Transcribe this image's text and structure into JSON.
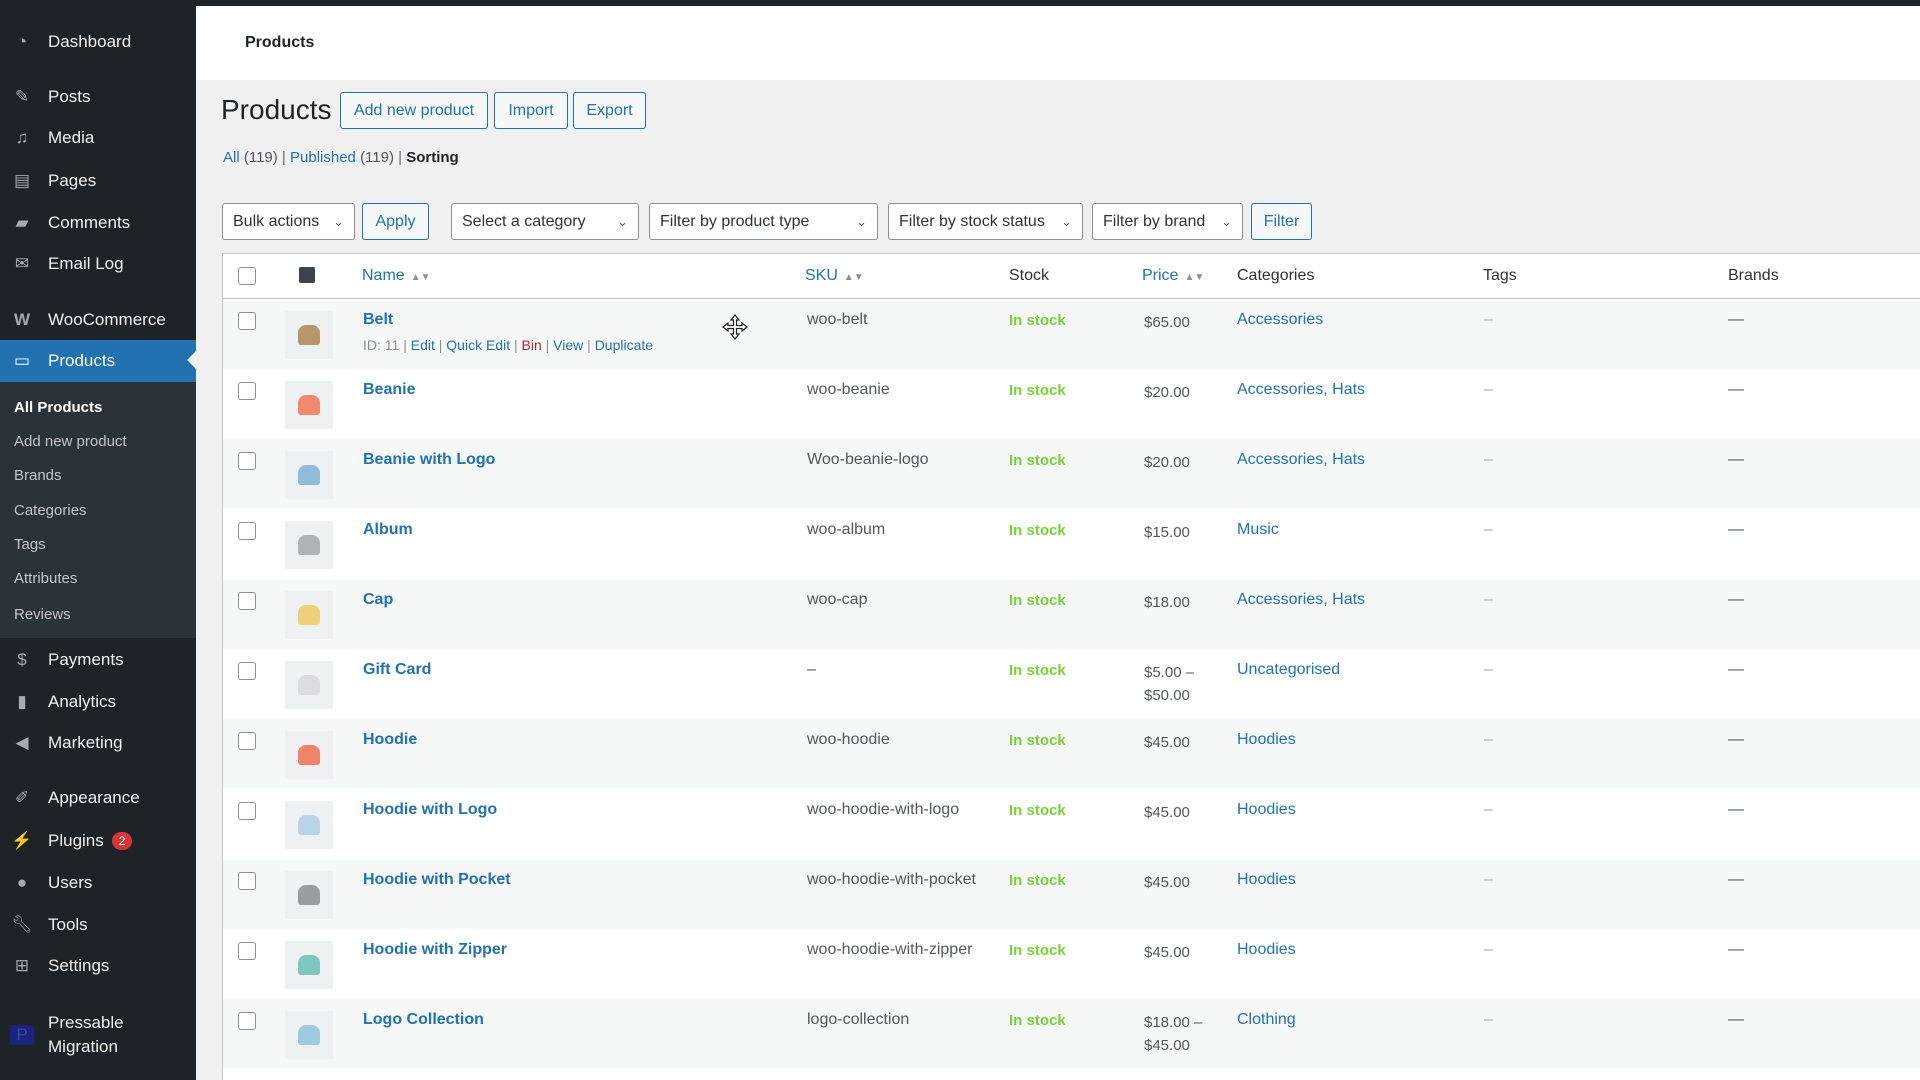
{
  "sidebar": {
    "dashboard": "Dashboard",
    "posts": "Posts",
    "media": "Media",
    "pages": "Pages",
    "comments": "Comments",
    "email_log": "Email Log",
    "woocommerce": "WooCommerce",
    "products": "Products",
    "sub": [
      "All Products",
      "Add new product",
      "Brands",
      "Categories",
      "Tags",
      "Attributes",
      "Reviews"
    ],
    "payments": "Payments",
    "analytics": "Analytics",
    "marketing": "Marketing",
    "appearance": "Appearance",
    "plugins": "Plugins",
    "plugins_badge": "2",
    "users": "Users",
    "tools": "Tools",
    "settings": "Settings",
    "pressable": "Pressable Migration"
  },
  "header": {
    "title": "Products"
  },
  "page": {
    "title": "Products",
    "add_new": "Add new product",
    "import": "Import",
    "export": "Export"
  },
  "views": {
    "all": "All",
    "all_count": "(119)",
    "published": "Published",
    "published_count": "(119)",
    "sorting": "Sorting",
    "sep": "|"
  },
  "filters": {
    "bulk": "Bulk actions",
    "apply": "Apply",
    "category": "Select a category",
    "product_type": "Filter by product type",
    "stock_status": "Filter by stock status",
    "brand": "Filter by brand",
    "filter": "Filter"
  },
  "columns": {
    "name": "Name",
    "sku": "SKU",
    "stock": "Stock",
    "price": "Price",
    "categories": "Categories",
    "tags": "Tags",
    "brands": "Brands"
  },
  "row_actions": {
    "id": "ID: 11",
    "edit": "Edit",
    "quick_edit": "Quick Edit",
    "bin": "Bin",
    "view": "View",
    "duplicate": "Duplicate"
  },
  "products": [
    {
      "name": "Belt",
      "sku": "woo-belt",
      "stock": "In stock",
      "price": "$65.00",
      "price2": "",
      "categories": "Accessories",
      "tags": "–",
      "brands": "—",
      "thumb_color": "#b8956a"
    },
    {
      "name": "Beanie",
      "sku": "woo-beanie",
      "stock": "In stock",
      "price": "$20.00",
      "price2": "",
      "categories": "Accessories, Hats",
      "tags": "–",
      "brands": "—",
      "thumb_color": "#f08a6c"
    },
    {
      "name": "Beanie with Logo",
      "sku": "Woo-beanie-logo",
      "stock": "In stock",
      "price": "$20.00",
      "price2": "",
      "categories": "Accessories, Hats",
      "tags": "–",
      "brands": "—",
      "thumb_color": "#8fbcd8"
    },
    {
      "name": "Album",
      "sku": "woo-album",
      "stock": "In stock",
      "price": "$15.00",
      "price2": "",
      "categories": "Music",
      "tags": "–",
      "brands": "—",
      "thumb_color": "#b0b3b6"
    },
    {
      "name": "Cap",
      "sku": "woo-cap",
      "stock": "In stock",
      "price": "$18.00",
      "price2": "",
      "categories": "Accessories, Hats",
      "tags": "–",
      "brands": "—",
      "thumb_color": "#efcf7a"
    },
    {
      "name": "Gift Card",
      "sku": "–",
      "stock": "In stock",
      "price": "$5.00 –",
      "price2": "$50.00",
      "categories": "Uncategorised",
      "tags": "–",
      "brands": "—",
      "thumb_color": "#dcdcde"
    },
    {
      "name": "Hoodie",
      "sku": "woo-hoodie",
      "stock": "In stock",
      "price": "$45.00",
      "price2": "",
      "categories": "Hoodies",
      "tags": "–",
      "brands": "—",
      "thumb_color": "#f0836a"
    },
    {
      "name": "Hoodie with Logo",
      "sku": "woo-hoodie-with-logo",
      "stock": "In stock",
      "price": "$45.00",
      "price2": "",
      "categories": "Hoodies",
      "tags": "–",
      "brands": "—",
      "thumb_color": "#b9d3e6"
    },
    {
      "name": "Hoodie with Pocket",
      "sku": "woo-hoodie-with-pocket",
      "stock": "In stock",
      "price": "$45.00",
      "price2": "",
      "categories": "Hoodies",
      "tags": "–",
      "brands": "—",
      "thumb_color": "#9a9da0"
    },
    {
      "name": "Hoodie with Zipper",
      "sku": "woo-hoodie-with-zipper",
      "stock": "In stock",
      "price": "$45.00",
      "price2": "",
      "categories": "Hoodies",
      "tags": "–",
      "brands": "—",
      "thumb_color": "#7cc7c0"
    },
    {
      "name": "Logo Collection",
      "sku": "logo-collection",
      "stock": "In stock",
      "price": "$18.00 –",
      "price2": "$45.00",
      "categories": "Clothing",
      "tags": "–",
      "brands": "—",
      "thumb_color": "#9ccbe0"
    }
  ]
}
